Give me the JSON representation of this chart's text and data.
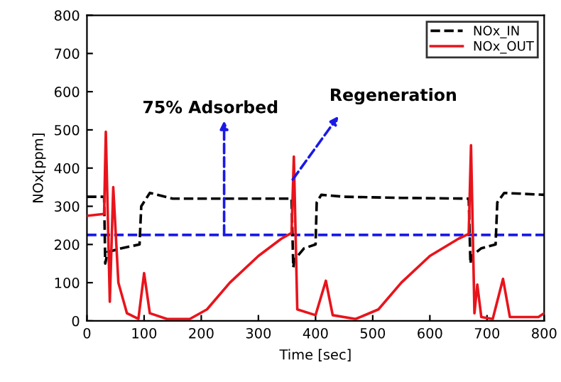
{
  "chart_data": {
    "type": "line",
    "xlabel": "Time [sec]",
    "ylabel": "NOx[ppm]",
    "xlim": [
      0,
      800
    ],
    "ylim": [
      0,
      800
    ],
    "xticks": [
      0,
      100,
      200,
      300,
      400,
      500,
      600,
      700,
      800
    ],
    "yticks": [
      0,
      100,
      200,
      300,
      400,
      500,
      600,
      700,
      800
    ],
    "legend": "top right",
    "grid": false,
    "marker": "none",
    "series": [
      {
        "name": "NOx_IN",
        "color": "#000000",
        "line_style": "dashed",
        "x": [
          0,
          30,
          32,
          36,
          60,
          92,
          95,
          110,
          150,
          250,
          358,
          361,
          363,
          380,
          400,
          402,
          410,
          450,
          550,
          668,
          671,
          673,
          690,
          715,
          718,
          730,
          800
        ],
        "values": [
          325,
          325,
          150,
          180,
          190,
          200,
          300,
          335,
          320,
          320,
          320,
          140,
          160,
          190,
          200,
          310,
          330,
          325,
          322,
          320,
          150,
          170,
          190,
          200,
          310,
          335,
          330
        ]
      },
      {
        "name": "NOx_OUT",
        "color": "#e8141c",
        "line_style": "solid",
        "x": [
          0,
          30,
          33,
          40,
          46,
          55,
          70,
          90,
          100,
          110,
          140,
          180,
          210,
          250,
          300,
          340,
          358,
          362,
          368,
          400,
          418,
          430,
          470,
          510,
          550,
          600,
          650,
          668,
          672,
          678,
          683,
          690,
          710,
          728,
          740,
          790,
          800
        ],
        "values": [
          275,
          280,
          495,
          50,
          350,
          100,
          20,
          5,
          125,
          20,
          5,
          5,
          30,
          100,
          170,
          215,
          230,
          430,
          30,
          15,
          105,
          15,
          5,
          30,
          100,
          170,
          215,
          228,
          460,
          20,
          95,
          10,
          5,
          110,
          10,
          10,
          20
        ]
      }
    ],
    "ref_lines": [
      {
        "axis": "y",
        "value": 225,
        "color": "#1a1ae6",
        "line_style": "dashed"
      }
    ],
    "annotations": [
      {
        "text": "75% Adsorbed",
        "x": 240,
        "y": 225
      },
      {
        "text": "Regeneration",
        "x": 360,
        "y": 370
      }
    ]
  }
}
